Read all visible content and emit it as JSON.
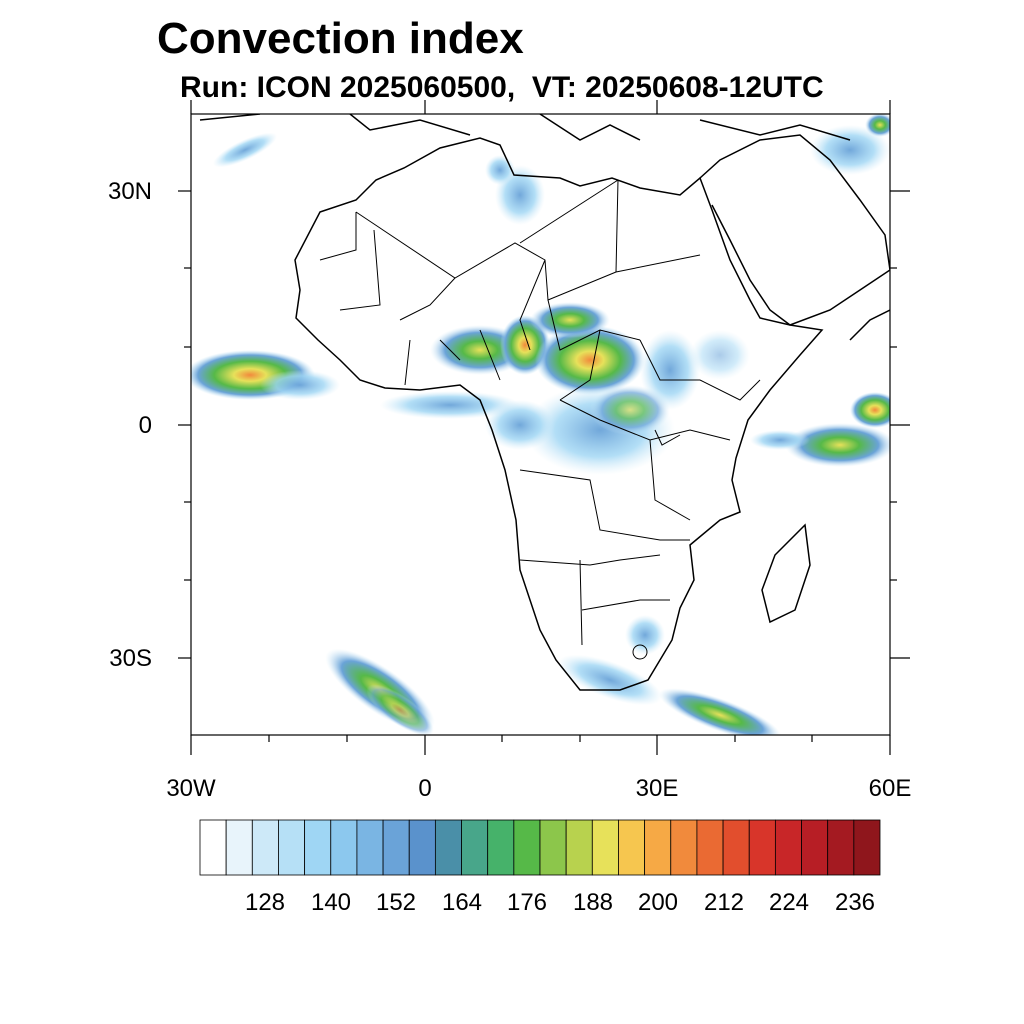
{
  "title": "Convection index",
  "subtitle": "Run: ICON 2025060500,  VT: 20250608-12UTC",
  "map": {
    "region": "Africa",
    "lon_range_deg": [
      -30,
      60
    ],
    "lat_range_deg": [
      -40,
      40
    ],
    "lat_labels": [
      "30N",
      "0",
      "30S"
    ],
    "lon_labels": [
      "30W",
      "0",
      "30E",
      "60E"
    ]
  },
  "colorbar": {
    "labels": [
      "128",
      "140",
      "152",
      "164",
      "176",
      "188",
      "200",
      "212",
      "224",
      "236"
    ],
    "colors": [
      "#ffffff",
      "#e8f4fb",
      "#cde9f8",
      "#b6e0f6",
      "#9fd6f4",
      "#8cc8ee",
      "#7ab5e3",
      "#6aa3d8",
      "#5a92cc",
      "#4a8fa8",
      "#48a68a",
      "#46b26a",
      "#56b948",
      "#8cc64b",
      "#b8d24e",
      "#e7e15a",
      "#f6c64f",
      "#f6a945",
      "#f18a3c",
      "#ea6a33",
      "#e24e2d",
      "#d8352a",
      "#c82628",
      "#b71e25",
      "#a41a21",
      "#8f161c"
    ]
  }
}
